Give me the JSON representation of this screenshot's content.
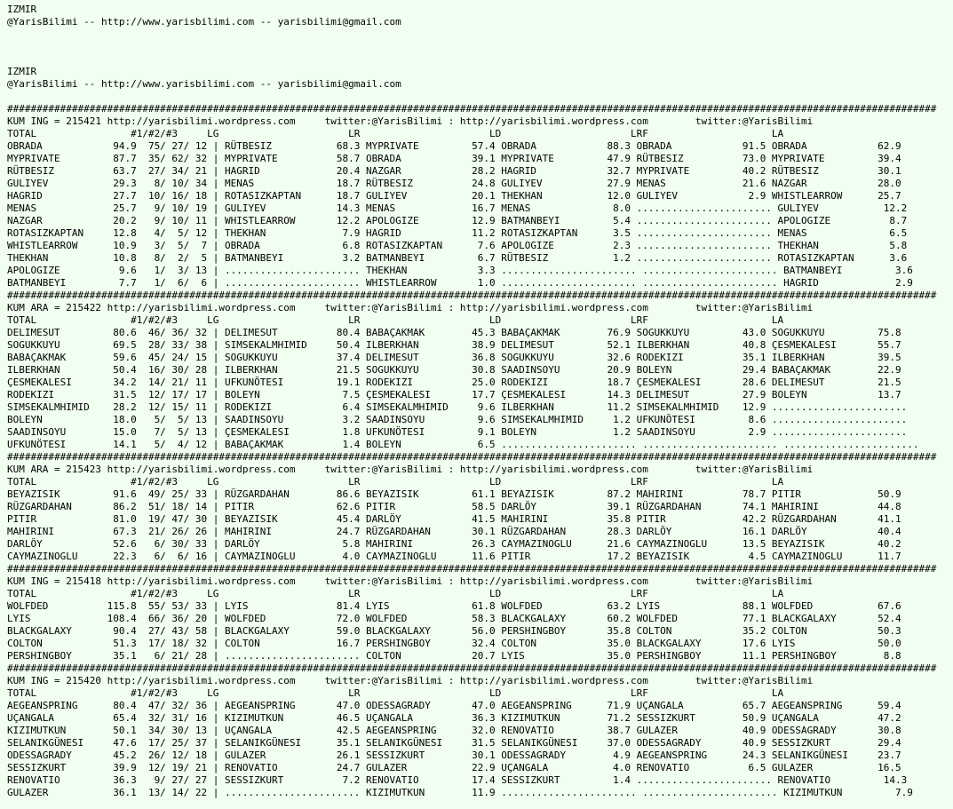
{
  "lines": [
    "IZMIR",
    "@YarisBilimi -- http://www.yarisbilimi.com -- yarisbilimi@gmail.com",
    "",
    "",
    "",
    "IZMIR",
    "@YarisBilimi -- http://www.yarisbilimi.com -- yarisbilimi@gmail.com",
    "",
    "##############################################################################################################################################################",
    "KUM ING = 215421 http://yarisbilimi.wordpress.com     twitter:@YarisBilimi : http://yarisbilimi.wordpress.com        twitter:@YarisBilimi",
    "TOTAL                #1/#2/#3     LG                      LR                      LD                      LRF                     LA",
    "OBRADA            94.9  75/ 27/ 12 | RÜTBESIZ           68.3 MYPRIVATE         57.4 OBRADA            88.3 OBRADA            91.5 OBRADA            62.9",
    "MYPRIVATE         87.7  35/ 62/ 32 | MYPRIVATE          58.7 OBRADA            39.1 MYPRIVATE         47.9 RÜTBESIZ          73.0 MYPRIVATE         39.4",
    "RÜTBESIZ          63.7  27/ 34/ 21 | HAGRID             20.4 NAZGAR            28.2 HAGRID            32.7 MYPRIVATE         40.2 RÜTBESIZ          30.1",
    "GULIYEV           29.3   8/ 10/ 34 | MENAS              18.7 RÜTBESIZ          24.8 GULIYEV           27.9 MENAS             21.6 NAZGAR            28.0",
    "HAGRID            27.7  10/ 16/ 18 | ROTASIZKAPTAN      18.7 GULIYEV           20.1 THEKHAN           12.0 GULIYEV            2.9 WHISTLEARROW      25.7",
    "MENAS             25.7   9/ 10/ 19 | GULIYEV            14.3 MENAS             16.7 MENAS              8.0 ....................... GULIYEV           12.2",
    "NAZGAR            20.2   9/ 10/ 11 | WHISTLEARROW       12.2 APOLOGIZE         12.9 BATMANBEYI         5.4 ....................... APOLOGIZE          8.7",
    "ROTASIZKAPTAN     12.8   4/  5/ 12 | THEKHAN             7.9 HAGRID            11.2 ROTASIZKAPTAN      3.5 ....................... MENAS              6.5",
    "WHISTLEARROW      10.9   3/  5/  7 | OBRADA              6.8 ROTASIZKAPTAN      7.6 APOLOGIZE          2.3 ....................... THEKHAN            5.8",
    "THEKHAN           10.8   8/  2/  5 | BATMANBEYI          3.2 BATMANBEYI         6.7 RÜTBESIZ           1.2 ....................... ROTASIZKAPTAN      3.6",
    "APOLOGIZE          9.6   1/  3/ 13 | ....................... THEKHAN            3.3 ....................... ....................... BATMANBEYI         3.6",
    "BATMANBEYI         7.7   1/  6/  6 | ....................... WHISTLEARROW       1.0 ....................... ....................... HAGRID             2.9",
    "##############################################################################################################################################################",
    "KUM ARA = 215422 http://yarisbilimi.wordpress.com     twitter:@YarisBilimi : http://yarisbilimi.wordpress.com        twitter:@YarisBilimi",
    "TOTAL                #1/#2/#3     LG                      LR                      LD                      LRF                     LA",
    "DELIMESUT         80.6  46/ 36/ 32 | DELIMESUT          80.4 BABAÇAKMAK        45.3 BABAÇAKMAK        76.9 SOGUKKUYU         43.0 SOGUKKUYU         75.8",
    "SOGUKKUYU         69.5  28/ 33/ 38 | SIMSEKALMHIMID     50.4 ILBERKHAN         38.9 DELIMESUT         52.1 ILBERKHAN         40.8 ÇESMEKALESI       55.7",
    "BABAÇAKMAK        59.6  45/ 24/ 15 | SOGUKKUYU          37.4 DELIMESUT         36.8 SOGUKKUYU         32.6 RODEKIZI          35.1 ILBERKHAN         39.5",
    "ILBERKHAN         50.4  16/ 30/ 28 | ILBERKHAN          21.5 SOGUKKUYU         30.8 SAADINSOYU        20.9 BOLEYN            29.4 BABAÇAKMAK        22.9",
    "ÇESMEKALESI       34.2  14/ 21/ 11 | UFKUNÖTESI         19.1 RODEKIZI          25.0 RODEKIZI          18.7 ÇESMEKALESI       28.6 DELIMESUT         21.5",
    "RODEKIZI          31.5  12/ 17/ 17 | BOLEYN              7.5 ÇESMEKALESI       17.7 ÇESMEKALESI       14.3 DELIMESUT         27.9 BOLEYN            13.7",
    "SIMSEKALMHIMID    28.2  12/ 15/ 11 | RODEKIZI            6.4 SIMSEKALMHIMID     9.6 ILBERKHAN         11.2 SIMSEKALMHIMID    12.9 .......................",
    "BOLEYN            18.0   5/  5/ 13 | SAADINSOYU          3.2 SAADINSOYU         9.6 SIMSEKALMHIMID     1.2 UFKUNÖTESI         8.6 .......................",
    "SAADINSOYU        15.0   7/  5/ 13 | ÇESMEKALESI         1.8 UFKUNÖTESI         9.1 BOLEYN             1.2 SAADINSOYU         2.9 .......................",
    "UFKUNÖTESI        14.1   5/  4/ 12 | BABAÇAKMAK          1.4 BOLEYN             6.5 ....................... ....................... .......................",
    "##############################################################################################################################################################",
    "KUM ARA = 215423 http://yarisbilimi.wordpress.com     twitter:@YarisBilimi : http://yarisbilimi.wordpress.com        twitter:@YarisBilimi",
    "TOTAL                #1/#2/#3     LG                      LR                      LD                      LRF                     LA",
    "BEYAZISIK         91.6  49/ 25/ 33 | RÜZGARDAHAN        86.6 BEYAZISIK         61.1 BEYAZISIK         87.2 MAHIRINI          78.7 PITIR             50.9",
    "RÜZGARDAHAN       86.2  51/ 18/ 14 | PITIR              62.6 PITIR             58.5 DARLÖY            39.1 RÜZGARDAHAN       74.1 MAHIRINI          44.8",
    "PITIR             81.0  19/ 47/ 30 | BEYAZISIK          45.4 DARLÖY            41.5 MAHIRINI          35.8 PITIR             42.2 RÜZGARDAHAN       41.1",
    "MAHIRINI          67.3  21/ 26/ 26 | MAHIRINI           24.7 RÜZGARDAHAN       30.1 RÜZGARDAHAN       28.3 DARLÖY            16.1 DARLÖY            40.4",
    "DARLÖY            52.6   6/ 30/ 33 | DARLÖY              5.8 MAHIRINI          26.3 CAYMAZINOGLU      21.6 CAYMAZINOGLU      13.5 BEYAZISIK         40.2",
    "CAYMAZINOGLU      22.3   6/  6/ 16 | CAYMAZINOGLU        4.0 CAYMAZINOGLU      11.6 PITIR             17.2 BEYAZISIK          4.5 CAYMAZINOGLU      11.7",
    "##############################################################################################################################################################",
    "KUM ING = 215418 http://yarisbilimi.wordpress.com     twitter:@YarisBilimi : http://yarisbilimi.wordpress.com        twitter:@YarisBilimi",
    "TOTAL                #1/#2/#3     LG                      LR                      LD                      LRF                     LA",
    "WOLFDED          115.8  55/ 53/ 33 | LYIS               81.4 LYIS              61.8 WOLFDED           63.2 LYIS              88.1 WOLFDED           67.6",
    "LYIS             108.4  66/ 36/ 20 | WOLFDED            72.0 WOLFDED           58.3 BLACKGALAXY       60.2 WOLFDED           77.1 BLACKGALAXY       52.4",
    "BLACKGALAXY       90.4  27/ 43/ 58 | BLACKGALAXY        59.0 BLACKGALAXY       56.0 PERSHINGBOY       35.8 COLTON            35.2 COLTON            50.3",
    "COLTON            51.3  17/ 18/ 32 | COLTON             16.7 PERSHINGBOY       32.4 COLTON            35.0 BLACKGALAXY       17.6 LYIS              50.0",
    "PERSHINGBOY       35.1   6/ 21/ 28 | ....................... COLTON            20.7 LYIS              35.0 PERSHINGBOY       11.1 PERSHINGBOY        8.8",
    "##############################################################################################################################################################",
    "KUM ING = 215420 http://yarisbilimi.wordpress.com     twitter:@YarisBilimi : http://yarisbilimi.wordpress.com        twitter:@YarisBilimi",
    "TOTAL                #1/#2/#3     LG                      LR                      LD                      LRF                     LA",
    "AEGEANSPRING      80.4  47/ 32/ 36 | AEGEANSPRING       47.0 ODESSAGRADY       47.0 AEGEANSPRING      71.9 UÇANGALA          65.7 AEGEANSPRING      59.4",
    "UÇANGALA          65.4  32/ 31/ 16 | KIZIMUTKUN         46.5 UÇANGALA          36.3 KIZIMUTKUN        71.2 SESSIZKURT        50.9 UÇANGALA          47.2",
    "KIZIMUTKUN        50.1  34/ 30/ 13 | UÇANGALA           42.5 AEGEANSPRING      32.0 RENOVATIO         38.7 GULAZER           40.9 ODESSAGRADY       30.8",
    "SELANIKGÜNESI     47.6  17/ 25/ 37 | SELANIKGÜNESI      35.1 SELANIKGÜNESI     31.5 SELANIKGÜNESI     37.0 ODESSAGRADY       40.9 SESSIZKURT        29.4",
    "ODESSAGRADY       45.2  26/ 12/ 18 | GULAZER            26.1 SESSIZKURT        30.1 ODESSAGRADY        4.9 AEGEANSPRING      24.3 SELANIKGÜNESI     23.7",
    "SESSIZKURT        39.9  12/ 19/ 21 | RENOVATIO          24.7 GULAZER           22.9 UÇANGALA           4.0 RENOVATIO          6.5 GULAZER           16.5",
    "RENOVATIO         36.3   9/ 27/ 27 | SESSIZKURT          7.2 RENOVATIO         17.4 SESSIZKURT         1.4 ....................... RENOVATIO         14.3",
    "GULAZER           36.1  13/ 14/ 22 | ....................... KIZIMUTKUN        11.9 ....................... ....................... KIZIMUTKUN         7.9"
  ]
}
